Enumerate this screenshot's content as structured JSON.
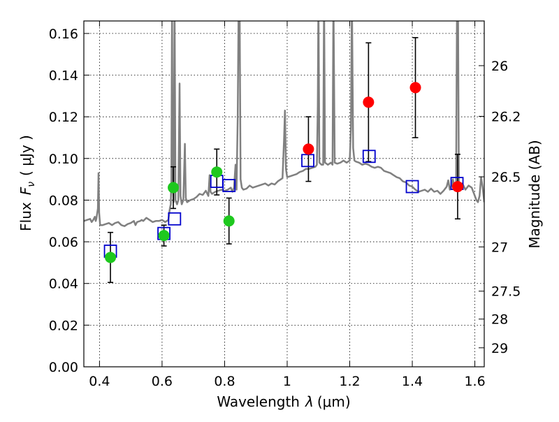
{
  "chart_data": {
    "type": "scatter",
    "xlabel_prefix": "Wavelength",
    "xlabel_var": "λ",
    "xlabel_unit": "(μm)",
    "ylabel_prefix": "Flux",
    "ylabel_var": "F",
    "ylabel_sub": "ν",
    "ylabel_unit": "( μJy )",
    "ylabel_right": "Magnitude (AB)",
    "xlim": [
      0.35,
      1.63
    ],
    "ylim": [
      0.0,
      0.166
    ],
    "x_ticks": [
      0.4,
      0.6,
      0.8,
      1.0,
      1.2,
      1.4,
      1.6
    ],
    "x_tick_labels": [
      "0.4",
      "0.6",
      "0.8",
      "1",
      "1.2",
      "1.4",
      "1.6"
    ],
    "y_ticks": [
      0.0,
      0.02,
      0.04,
      0.06,
      0.08,
      0.1,
      0.12,
      0.14,
      0.16
    ],
    "y_tick_labels": [
      "0.00",
      "0.02",
      "0.04",
      "0.06",
      "0.08",
      "0.10",
      "0.12",
      "0.14",
      "0.16"
    ],
    "mag_ticks": [
      26,
      26.2,
      26.5,
      27,
      27.5,
      28,
      29
    ],
    "mag_tick_labels": [
      "26",
      "26.2",
      "26.5",
      "27",
      "27.5",
      "28",
      "29"
    ],
    "grid": true,
    "colors": {
      "model_spectrum": "#808080",
      "green_points": "#1ec81e",
      "red_points": "#ff0000",
      "model_photometry": "#0000cc",
      "errorbars": "#000000"
    },
    "green_points": [
      {
        "x": 0.435,
        "y": 0.0525,
        "yerr": 0.012
      },
      {
        "x": 0.606,
        "y": 0.063,
        "yerr": 0.005
      },
      {
        "x": 0.636,
        "y": 0.086,
        "yerr": 0.01
      },
      {
        "x": 0.775,
        "y": 0.0935,
        "yerr": 0.011
      },
      {
        "x": 0.814,
        "y": 0.07,
        "yerr": 0.011
      }
    ],
    "red_points": [
      {
        "x": 1.068,
        "y": 0.1045,
        "yerr": 0.0155
      },
      {
        "x": 1.26,
        "y": 0.127,
        "yerr": 0.0285
      },
      {
        "x": 1.41,
        "y": 0.134,
        "yerr": 0.024
      },
      {
        "x": 1.545,
        "y": 0.0865,
        "yerr": 0.0155
      }
    ],
    "model_photometry": [
      {
        "x": 0.435,
        "y": 0.0555
      },
      {
        "x": 0.606,
        "y": 0.064
      },
      {
        "x": 0.64,
        "y": 0.071
      },
      {
        "x": 0.775,
        "y": 0.089
      },
      {
        "x": 0.814,
        "y": 0.087
      },
      {
        "x": 1.066,
        "y": 0.099
      },
      {
        "x": 1.262,
        "y": 0.101
      },
      {
        "x": 1.4,
        "y": 0.0865
      },
      {
        "x": 1.543,
        "y": 0.088
      }
    ],
    "model_spectrum": [
      [
        0.35,
        0.07
      ],
      [
        0.36,
        0.0705
      ],
      [
        0.37,
        0.071
      ],
      [
        0.375,
        0.0695
      ],
      [
        0.38,
        0.0705
      ],
      [
        0.385,
        0.072
      ],
      [
        0.388,
        0.07
      ],
      [
        0.39,
        0.071
      ],
      [
        0.395,
        0.076
      ],
      [
        0.397,
        0.093
      ],
      [
        0.399,
        0.074
      ],
      [
        0.402,
        0.068
      ],
      [
        0.41,
        0.068
      ],
      [
        0.42,
        0.0685
      ],
      [
        0.43,
        0.069
      ],
      [
        0.44,
        0.068
      ],
      [
        0.45,
        0.069
      ],
      [
        0.46,
        0.0695
      ],
      [
        0.47,
        0.068
      ],
      [
        0.48,
        0.0675
      ],
      [
        0.49,
        0.0685
      ],
      [
        0.5,
        0.069
      ],
      [
        0.51,
        0.07
      ],
      [
        0.515,
        0.068
      ],
      [
        0.52,
        0.0695
      ],
      [
        0.53,
        0.07
      ],
      [
        0.535,
        0.0705
      ],
      [
        0.54,
        0.07
      ],
      [
        0.55,
        0.0715
      ],
      [
        0.56,
        0.0705
      ],
      [
        0.57,
        0.0695
      ],
      [
        0.58,
        0.07
      ],
      [
        0.59,
        0.07
      ],
      [
        0.6,
        0.0705
      ],
      [
        0.61,
        0.0695
      ],
      [
        0.62,
        0.0705
      ],
      [
        0.625,
        0.076
      ],
      [
        0.628,
        0.078
      ],
      [
        0.63,
        0.09
      ],
      [
        0.632,
        0.175
      ],
      [
        0.634,
        0.089
      ],
      [
        0.637,
        0.079
      ],
      [
        0.64,
        0.178
      ],
      [
        0.643,
        0.08
      ],
      [
        0.648,
        0.078
      ],
      [
        0.652,
        0.08
      ],
      [
        0.656,
        0.136
      ],
      [
        0.659,
        0.082
      ],
      [
        0.663,
        0.078
      ],
      [
        0.668,
        0.08
      ],
      [
        0.673,
        0.107
      ],
      [
        0.676,
        0.081
      ],
      [
        0.68,
        0.079
      ],
      [
        0.69,
        0.08
      ],
      [
        0.7,
        0.0805
      ],
      [
        0.71,
        0.0815
      ],
      [
        0.72,
        0.083
      ],
      [
        0.73,
        0.0825
      ],
      [
        0.74,
        0.0845
      ],
      [
        0.748,
        0.082
      ],
      [
        0.752,
        0.092
      ],
      [
        0.755,
        0.084
      ],
      [
        0.76,
        0.083
      ],
      [
        0.77,
        0.084
      ],
      [
        0.78,
        0.0845
      ],
      [
        0.79,
        0.085
      ],
      [
        0.8,
        0.0845
      ],
      [
        0.81,
        0.085
      ],
      [
        0.82,
        0.086
      ],
      [
        0.825,
        0.084
      ],
      [
        0.83,
        0.086
      ],
      [
        0.835,
        0.097
      ],
      [
        0.838,
        0.085
      ],
      [
        0.842,
        0.12
      ],
      [
        0.845,
        0.178
      ],
      [
        0.848,
        0.175
      ],
      [
        0.851,
        0.09
      ],
      [
        0.855,
        0.086
      ],
      [
        0.86,
        0.085
      ],
      [
        0.87,
        0.0855
      ],
      [
        0.88,
        0.087
      ],
      [
        0.89,
        0.086
      ],
      [
        0.9,
        0.0865
      ],
      [
        0.91,
        0.087
      ],
      [
        0.92,
        0.0875
      ],
      [
        0.93,
        0.088
      ],
      [
        0.94,
        0.087
      ],
      [
        0.95,
        0.088
      ],
      [
        0.96,
        0.0875
      ],
      [
        0.97,
        0.089
      ],
      [
        0.98,
        0.09
      ],
      [
        0.985,
        0.0905
      ],
      [
        0.99,
        0.109
      ],
      [
        0.993,
        0.123
      ],
      [
        0.996,
        0.095
      ],
      [
        1.0,
        0.091
      ],
      [
        1.01,
        0.0915
      ],
      [
        1.02,
        0.092
      ],
      [
        1.03,
        0.0925
      ],
      [
        1.04,
        0.0935
      ],
      [
        1.05,
        0.094
      ],
      [
        1.06,
        0.095
      ],
      [
        1.07,
        0.095
      ],
      [
        1.08,
        0.0955
      ],
      [
        1.09,
        0.096
      ],
      [
        1.095,
        0.097
      ],
      [
        1.098,
        0.125
      ],
      [
        1.1,
        0.178
      ],
      [
        1.103,
        0.098
      ],
      [
        1.11,
        0.097
      ],
      [
        1.115,
        0.097
      ],
      [
        1.118,
        0.178
      ],
      [
        1.121,
        0.098
      ],
      [
        1.13,
        0.097
      ],
      [
        1.14,
        0.098
      ],
      [
        1.145,
        0.097
      ],
      [
        1.148,
        0.178
      ],
      [
        1.152,
        0.098
      ],
      [
        1.16,
        0.0975
      ],
      [
        1.17,
        0.098
      ],
      [
        1.18,
        0.099
      ],
      [
        1.19,
        0.098
      ],
      [
        1.2,
        0.099
      ],
      [
        1.204,
        0.115
      ],
      [
        1.207,
        0.178
      ],
      [
        1.211,
        0.105
      ],
      [
        1.215,
        0.099
      ],
      [
        1.22,
        0.0985
      ],
      [
        1.23,
        0.098
      ],
      [
        1.24,
        0.097
      ],
      [
        1.25,
        0.0975
      ],
      [
        1.26,
        0.097
      ],
      [
        1.27,
        0.096
      ],
      [
        1.28,
        0.0955
      ],
      [
        1.29,
        0.096
      ],
      [
        1.3,
        0.0955
      ],
      [
        1.31,
        0.094
      ],
      [
        1.32,
        0.0935
      ],
      [
        1.33,
        0.093
      ],
      [
        1.34,
        0.092
      ],
      [
        1.35,
        0.091
      ],
      [
        1.36,
        0.0905
      ],
      [
        1.37,
        0.089
      ],
      [
        1.38,
        0.0885
      ],
      [
        1.39,
        0.087
      ],
      [
        1.4,
        0.0865
      ],
      [
        1.41,
        0.085
      ],
      [
        1.42,
        0.084
      ],
      [
        1.43,
        0.0845
      ],
      [
        1.44,
        0.085
      ],
      [
        1.45,
        0.084
      ],
      [
        1.46,
        0.0855
      ],
      [
        1.47,
        0.084
      ],
      [
        1.48,
        0.0845
      ],
      [
        1.49,
        0.083
      ],
      [
        1.5,
        0.0845
      ],
      [
        1.51,
        0.0865
      ],
      [
        1.515,
        0.0895
      ],
      [
        1.52,
        0.085
      ],
      [
        1.525,
        0.087
      ],
      [
        1.53,
        0.09
      ],
      [
        1.535,
        0.086
      ],
      [
        1.54,
        0.085
      ],
      [
        1.543,
        0.178
      ],
      [
        1.546,
        0.178
      ],
      [
        1.549,
        0.088
      ],
      [
        1.555,
        0.087
      ],
      [
        1.56,
        0.088
      ],
      [
        1.57,
        0.085
      ],
      [
        1.58,
        0.087
      ],
      [
        1.59,
        0.086
      ],
      [
        1.6,
        0.082
      ],
      [
        1.605,
        0.08
      ],
      [
        1.61,
        0.079
      ],
      [
        1.615,
        0.082
      ],
      [
        1.62,
        0.091
      ],
      [
        1.625,
        0.086
      ],
      [
        1.63,
        0.079
      ]
    ]
  }
}
